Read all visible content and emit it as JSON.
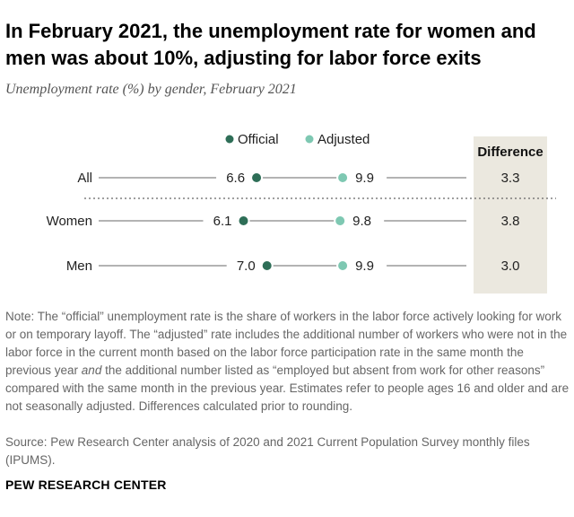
{
  "title": "In February 2021, the unemployment rate for women and men was about 10%, adjusting for labor force exits",
  "subtitle": "Unemployment rate (%) by gender, February 2021",
  "colors": {
    "official": "#2e6e57",
    "adjusted": "#7ec8b2",
    "difference_bg": "#ebe8df",
    "line": "#9a9a9a"
  },
  "chart_data": {
    "type": "dot-plot",
    "categories": [
      "All",
      "Women",
      "Men"
    ],
    "series": [
      {
        "name": "Official",
        "values": [
          6.6,
          6.1,
          7.0
        ]
      },
      {
        "name": "Adjusted",
        "values": [
          9.9,
          9.8,
          9.9
        ]
      }
    ],
    "difference_label": "Difference",
    "difference_values": [
      "3.3",
      "3.8",
      "3.0"
    ],
    "value_labels": {
      "official": [
        "6.6",
        "6.1",
        "7.0"
      ],
      "adjusted": [
        "9.9",
        "9.8",
        "9.9"
      ]
    },
    "xlim": [
      0,
      15
    ]
  },
  "note_pre": "Note: The “official” unemployment rate is the share of workers in the labor force actively looking for work or on temporary layoff. The “adjusted” rate includes the additional number of workers who were not in the labor force in the current month based on the labor force participation rate in the same month the previous year ",
  "note_and": "and",
  "note_post": " the additional number listed as “employed but absent from work for other reasons” compared with the same month in the previous year. Estimates refer to people ages 16 and older and are not seasonally adjusted. Differences calculated prior to rounding.",
  "source": "Source: Pew Research Center analysis of 2020 and 2021 Current Population Survey monthly files (IPUMS).",
  "brand": "PEW RESEARCH CENTER"
}
